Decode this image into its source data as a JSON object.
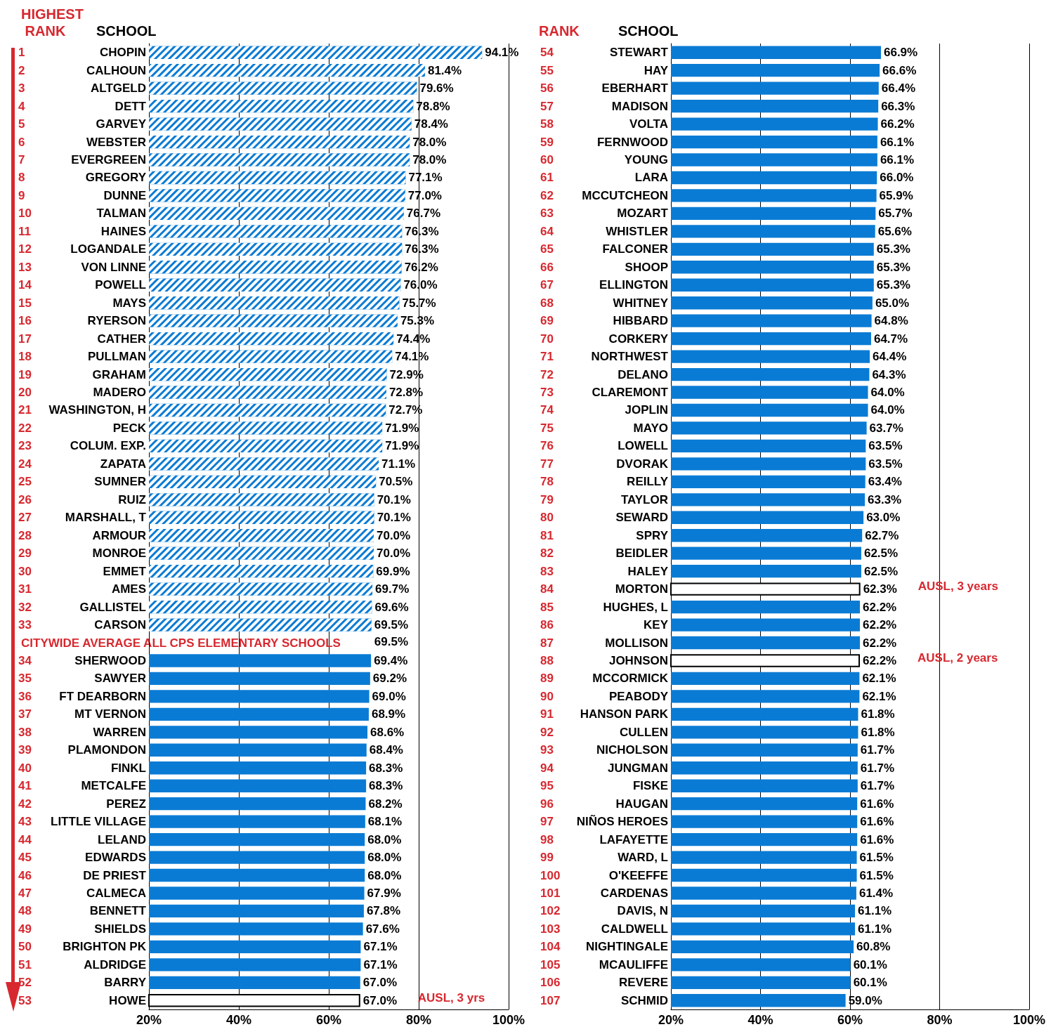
{
  "chart_data": [
    {
      "type": "bar",
      "orientation": "horizontal",
      "xlim": [
        20,
        100
      ],
      "xticks": [
        {
          "value": 20,
          "label": "20%"
        },
        {
          "value": 40,
          "label": "40%"
        },
        {
          "value": 60,
          "label": "60%"
        },
        {
          "value": 80,
          "label": "80%"
        },
        {
          "value": 100,
          "label": "100%"
        }
      ],
      "grid": "x",
      "categories": [
        "1 CHOPIN",
        "2 CALHOUN",
        "3 ALTGELD",
        "4 DETT",
        "5 GARVEY",
        "6 WEBSTER",
        "7 EVERGREEN",
        "8 GREGORY",
        "9 DUNNE",
        "10 TALMAN",
        "11 HAINES",
        "12 LOGANDALE",
        "13 VON LINNE",
        "14 POWELL",
        "15 MAYS",
        "16 RYERSON",
        "17 CATHER",
        "18 PULLMAN",
        "19 GRAHAM",
        "20 MADERO",
        "21 WASHINGTON, H",
        "22 PECK",
        "23 COLUM. EXP.",
        "24 ZAPATA",
        "25 SUMNER",
        "26 RUIZ",
        "27 MARSHALL, T",
        "28 ARMOUR",
        "29 MONROE",
        "30 EMMET",
        "31 AMES",
        "32 GALLISTEL",
        "33 CARSON",
        null,
        "34 SHERWOOD",
        "35 SAWYER",
        "36 FT DEARBORN",
        "37 MT VERNON",
        "38 WARREN",
        "39 PLAMONDON",
        "40 FINKL",
        "41 METCALFE",
        "42 PEREZ",
        "43 LITTLE VILLAGE",
        "44 LELAND",
        "45 EDWARDS",
        "46 DE PRIEST",
        "47 CALMECA",
        "48 BENNETT",
        "49 SHIELDS",
        "50 BRIGHTON PK",
        "51 ALDRIDGE",
        "52 BARRY",
        "53 HOWE"
      ],
      "values": [
        94.1,
        81.4,
        79.6,
        78.8,
        78.4,
        78.0,
        78.0,
        77.1,
        77.0,
        76.7,
        76.3,
        76.3,
        76.2,
        76.0,
        75.7,
        75.3,
        74.4,
        74.1,
        72.9,
        72.8,
        72.7,
        71.9,
        71.9,
        71.1,
        70.5,
        70.1,
        70.1,
        70.0,
        70.0,
        69.9,
        69.7,
        69.6,
        69.5,
        null,
        69.4,
        69.2,
        69.0,
        68.9,
        68.6,
        68.4,
        68.3,
        68.3,
        68.2,
        68.1,
        68.0,
        68.0,
        68.0,
        67.9,
        67.8,
        67.6,
        67.1,
        67.1,
        67.0,
        67.0
      ],
      "value_labels": [
        "94.1%",
        "81.4%",
        "79.6%",
        "78.8%",
        "78.4%",
        "78.0%",
        "78.0%",
        "77.1%",
        "77.0%",
        "76.7%",
        "76.3%",
        "76.3%",
        "76.2%",
        "76.0%",
        "75.7%",
        "75.3%",
        "74.4%",
        "74.1%",
        "72.9%",
        "72.8%",
        "72.7%",
        "71.9%",
        "71.9%",
        "71.1%",
        "70.5%",
        "70.1%",
        "70.1%",
        "70.0%",
        "70.0%",
        "69.9%",
        "69.7%",
        "69.6%",
        "69.5%",
        null,
        "69.4%",
        "69.2%",
        "69.0%",
        "68.9%",
        "68.6%",
        "68.4%",
        "68.3%",
        "68.3%",
        "68.2%",
        "68.1%",
        "68.0%",
        "68.0%",
        "68.0%",
        "67.9%",
        "67.8%",
        "67.6%",
        "67.1%",
        "67.1%",
        "67.0%",
        "67.0%"
      ],
      "colors": [
        "#0a7bd4",
        "#0a7bd4",
        "#0a7bd4",
        "#0a7bd4",
        "#0a7bd4",
        "#0a7bd4",
        "#0a7bd4",
        "#0a7bd4",
        "#0a7bd4",
        "#0a7bd4",
        "#0a7bd4",
        "#0a7bd4",
        "#0a7bd4",
        "#0a7bd4",
        "#0a7bd4",
        "#0a7bd4",
        "#0a7bd4",
        "#0a7bd4",
        "#0a7bd4",
        "#0a7bd4",
        "#0a7bd4",
        "#0a7bd4",
        "#0a7bd4",
        "#0a7bd4",
        "#0a7bd4",
        "#0a7bd4",
        "#0a7bd4",
        "#0a7bd4",
        "#0a7bd4",
        "#0a7bd4",
        "#0a7bd4",
        "#0a7bd4",
        "#0a7bd4",
        "#0a7bd4",
        "#0a7bd4",
        "#0a7bd4",
        "#0a7bd4",
        "#0a7bd4",
        "#0a7bd4",
        "#0a7bd4",
        "#0a7bd4",
        "#0a7bd4",
        "#0a7bd4",
        "#0a7bd4",
        "#0a7bd4",
        "#0a7bd4",
        "#0a7bd4",
        "#0a7bd4",
        "#0a7bd4",
        "#0a7bd4",
        "#0a7bd4",
        "#0a7bd4",
        "#0a7bd4",
        "#ffffff"
      ],
      "annotations": [
        "HIGHEST RANK",
        "SCHOOL",
        "CITYWIDE AVERAGE ALL CPS ELEMENTARY SCHOOLS",
        "69.5%",
        "AUSL, 3 yrs"
      ]
    },
    {
      "type": "bar",
      "orientation": "horizontal",
      "xlim": [
        20,
        100
      ],
      "xticks": [
        {
          "value": 20,
          "label": "20%"
        },
        {
          "value": 40,
          "label": "40%"
        },
        {
          "value": 60,
          "label": "60%"
        },
        {
          "value": 80,
          "label": "80%"
        },
        {
          "value": 100,
          "label": "100%"
        }
      ],
      "grid": "x",
      "categories": [
        "54 STEWART",
        "55 HAY",
        "56 EBERHART",
        "57 MADISON",
        "58 VOLTA",
        "59 FERNWOOD",
        "60 YOUNG",
        "61 LARA",
        "62 MCCUTCHEON",
        "63 MOZART",
        "64 WHISTLER",
        "65 FALCONER",
        "66 SHOOP",
        "67 ELLINGTON",
        "68 WHITNEY",
        "69 HIBBARD",
        "70 CORKERY",
        "71 NORTHWEST",
        "72 DELANO",
        "73 CLAREMONT",
        "74 JOPLIN",
        "75 MAYO",
        "76 LOWELL",
        "77 DVORAK",
        "78 REILLY",
        "79 TAYLOR",
        "80 SEWARD",
        "81 SPRY",
        "82 BEIDLER",
        "83 HALEY",
        "84 MORTON",
        "85 HUGHES, L",
        "86 KEY",
        "87 MOLLISON",
        "88 JOHNSON",
        "89 MCCORMICK",
        "90 PEABODY",
        "91 HANSON PARK",
        "92 CULLEN",
        "93 NICHOLSON",
        "94 JUNGMAN",
        "95 FISKE",
        "96 HAUGAN",
        "97 NIÑOS HEROES",
        "98 LAFAYETTE",
        "99 WARD, L",
        "100 O'KEEFFE",
        "101 CARDENAS",
        "102 DAVIS, N",
        "103 CALDWELL",
        "104 NIGHTINGALE",
        "105 MCAULIFFE",
        "106 REVERE",
        "107 SCHMID"
      ],
      "values": [
        66.9,
        66.6,
        66.4,
        66.3,
        66.2,
        66.1,
        66.1,
        66.0,
        65.9,
        65.7,
        65.6,
        65.3,
        65.3,
        65.3,
        65.0,
        64.8,
        64.7,
        64.4,
        64.3,
        64.0,
        64.0,
        63.7,
        63.5,
        63.5,
        63.4,
        63.3,
        63.0,
        62.7,
        62.5,
        62.5,
        62.3,
        62.2,
        62.2,
        62.2,
        62.2,
        62.1,
        62.1,
        61.8,
        61.8,
        61.7,
        61.7,
        61.7,
        61.6,
        61.6,
        61.6,
        61.5,
        61.5,
        61.4,
        61.1,
        61.1,
        60.8,
        60.1,
        60.1,
        59.0
      ],
      "value_labels": [
        "66.9%",
        "66.6%",
        "66.4%",
        "66.3%",
        "66.2%",
        "66.1%",
        "66.1%",
        "66.0%",
        "65.9%",
        "65.7%",
        "65.6%",
        "65.3%",
        "65.3%",
        "65.3%",
        "65.0%",
        "64.8%",
        "64.7%",
        "64.4%",
        "64.3%",
        "64.0%",
        "64.0%",
        "63.7%",
        "63.5%",
        "63.5%",
        "63.4%",
        "63.3%",
        "63.0%",
        "62.7%",
        "62.5%",
        "62.5%",
        "62.3%",
        "62.2%",
        "62.2%",
        "62.2%",
        "62.2%",
        "62.1%",
        "62.1%",
        "61.8%",
        "61.8%",
        "61.7%",
        "61.7%",
        "61.7%",
        "61.6%",
        "61.6%",
        "61.6%",
        "61.5%",
        "61.5%",
        "61.4%",
        "61.1%",
        "61.1%",
        "60.8%",
        "60.1%",
        "60.1%",
        "59.0%"
      ],
      "colors": [
        "#0a7bd4",
        "#0a7bd4",
        "#0a7bd4",
        "#0a7bd4",
        "#0a7bd4",
        "#0a7bd4",
        "#0a7bd4",
        "#0a7bd4",
        "#0a7bd4",
        "#0a7bd4",
        "#0a7bd4",
        "#0a7bd4",
        "#0a7bd4",
        "#0a7bd4",
        "#0a7bd4",
        "#0a7bd4",
        "#0a7bd4",
        "#0a7bd4",
        "#0a7bd4",
        "#0a7bd4",
        "#0a7bd4",
        "#0a7bd4",
        "#0a7bd4",
        "#0a7bd4",
        "#0a7bd4",
        "#0a7bd4",
        "#0a7bd4",
        "#0a7bd4",
        "#0a7bd4",
        "#0a7bd4",
        "#ffffff",
        "#0a7bd4",
        "#0a7bd4",
        "#0a7bd4",
        "#ffffff",
        "#0a7bd4",
        "#0a7bd4",
        "#0a7bd4",
        "#0a7bd4",
        "#0a7bd4",
        "#0a7bd4",
        "#0a7bd4",
        "#0a7bd4",
        "#0a7bd4",
        "#0a7bd4",
        "#0a7bd4",
        "#0a7bd4",
        "#0a7bd4",
        "#0a7bd4",
        "#0a7bd4",
        "#0a7bd4",
        "#0a7bd4",
        "#0a7bd4",
        "#0a7bd4"
      ],
      "annotations": [
        "RANK",
        "SCHOOL",
        "AUSL, 3 years",
        "AUSL, 2 years"
      ]
    }
  ]
}
